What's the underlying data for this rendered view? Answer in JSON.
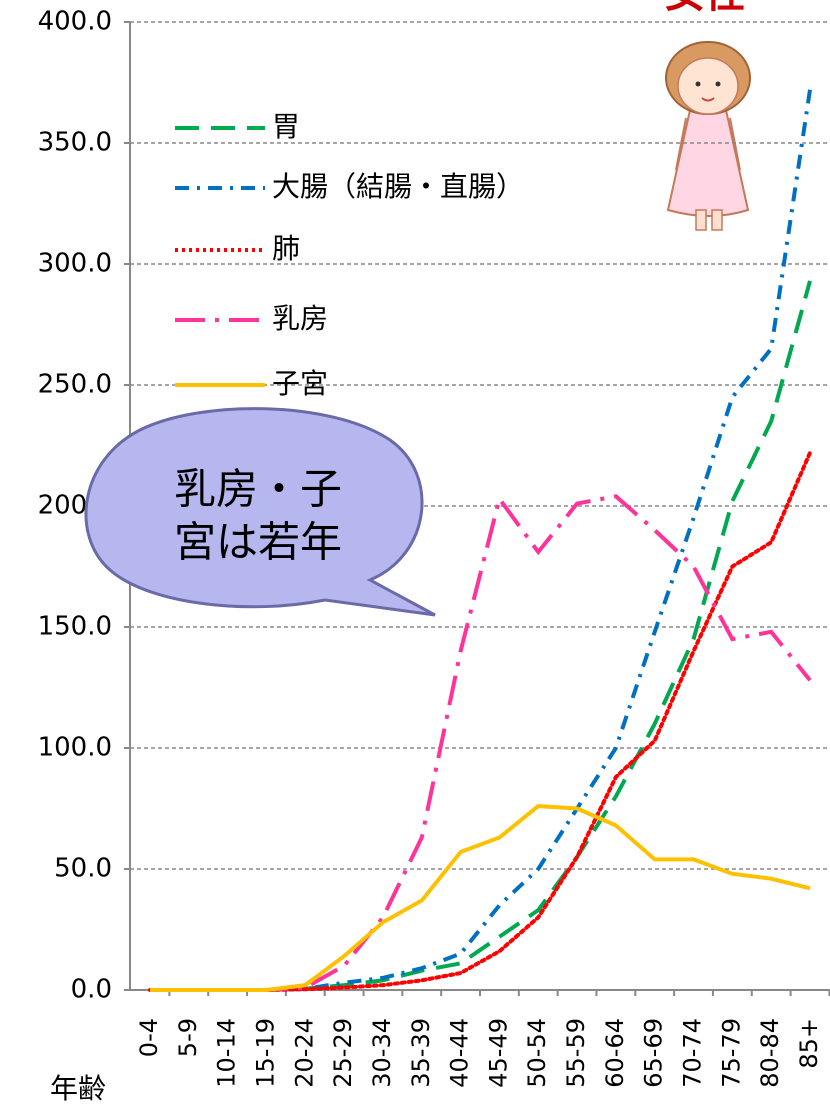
{
  "chart_data": {
    "type": "line",
    "title": "女性",
    "x_label": "年齢",
    "categories": [
      "0-4",
      "5-9",
      "10-14",
      "15-19",
      "20-24",
      "25-29",
      "30-34",
      "35-39",
      "40-44",
      "45-49",
      "50-54",
      "55-59",
      "60-64",
      "65-69",
      "70-74",
      "75-79",
      "80-84",
      "85+"
    ],
    "series": [
      {
        "name": "胃",
        "color": "#00a850",
        "style": "dashed",
        "values": [
          0,
          0,
          0,
          0,
          0.5,
          2,
          4,
          8,
          11,
          22,
          33,
          55,
          80,
          110,
          145,
          202,
          235,
          293
        ]
      },
      {
        "name": "大腸（結腸・直腸）",
        "color": "#0070c0",
        "style": "dashdot",
        "values": [
          0,
          0,
          0,
          0,
          0.5,
          3,
          5,
          9,
          15,
          35,
          50,
          75,
          100,
          148,
          195,
          245,
          265,
          372
        ]
      },
      {
        "name": "肺",
        "color": "#ff0000",
        "style": "dotted",
        "values": [
          0,
          0,
          0,
          0,
          0.3,
          1,
          2,
          4,
          7,
          16,
          30,
          55,
          88,
          103,
          140,
          175,
          185,
          222
        ]
      },
      {
        "name": "乳房",
        "color": "#ff3399",
        "style": "longdashdot",
        "values": [
          0,
          0,
          0,
          0,
          1,
          10,
          30,
          63,
          140,
          203,
          181,
          201,
          204,
          190,
          175,
          145,
          148,
          128
        ]
      },
      {
        "name": "子宮",
        "color": "#ffc000",
        "style": "solid",
        "values": [
          0,
          0,
          0,
          0,
          2,
          14,
          28,
          37,
          57,
          63,
          76,
          75,
          68,
          54,
          54,
          48,
          46,
          42
        ]
      }
    ],
    "ylim": [
      0,
      400
    ],
    "yticks": [
      {
        "value": 0,
        "label": "0.0"
      },
      {
        "value": 50,
        "label": "50.0"
      },
      {
        "value": 100,
        "label": "100.0"
      },
      {
        "value": 150,
        "label": "150.0"
      },
      {
        "value": 200,
        "label": "200.0"
      },
      {
        "value": 250,
        "label": "250.0"
      },
      {
        "value": 300,
        "label": "300.0"
      },
      {
        "value": 350,
        "label": "350.0"
      },
      {
        "value": 400,
        "label": "400.0"
      }
    ],
    "grid": true,
    "callout": [
      "乳房・子",
      "宮は若年"
    ]
  }
}
